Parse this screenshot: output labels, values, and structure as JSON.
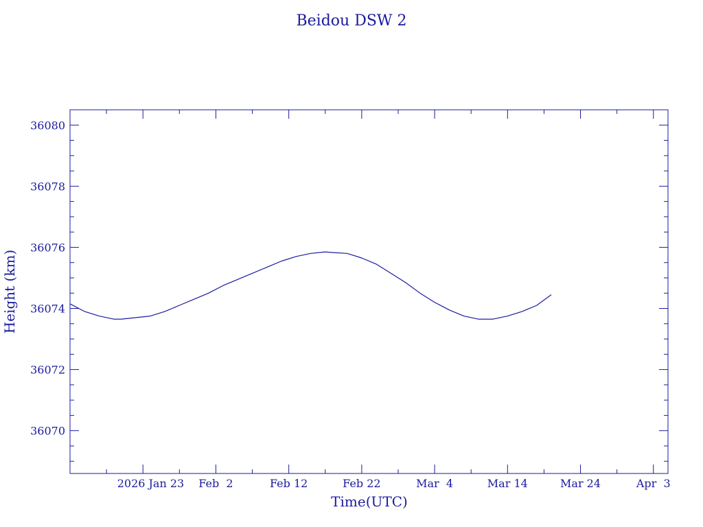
{
  "chart_data": {
    "type": "line",
    "title": "Beidou DSW 2",
    "xlabel": "Time(UTC)",
    "ylabel": "Height (km)",
    "xlim": [
      "2026-01-13",
      "2026-04-05"
    ],
    "ylim": [
      36068.6,
      36080.5
    ],
    "color": "#1a1a9e",
    "x_ticks": [
      {
        "date": "2026-01-23",
        "label": "2026 Jan 23"
      },
      {
        "date": "2026-02-02",
        "label": "Feb  2"
      },
      {
        "date": "2026-02-12",
        "label": "Feb 12"
      },
      {
        "date": "2026-02-22",
        "label": "Feb 22"
      },
      {
        "date": "2026-03-04",
        "label": "Mar  4"
      },
      {
        "date": "2026-03-14",
        "label": "Mar 14"
      },
      {
        "date": "2026-03-24",
        "label": "Mar 24"
      },
      {
        "date": "2026-04-03",
        "label": "Apr  3"
      }
    ],
    "y_ticks": [
      36070,
      36072,
      36074,
      36076,
      36078,
      36080
    ],
    "series": [
      {
        "x": [
          "2026-01-13",
          "2026-01-15",
          "2026-01-17",
          "2026-01-19",
          "2026-01-20",
          "2026-01-22",
          "2026-01-24",
          "2026-01-26",
          "2026-01-28",
          "2026-01-30",
          "2026-02-01",
          "2026-02-03",
          "2026-02-05",
          "2026-02-07",
          "2026-02-09",
          "2026-02-11",
          "2026-02-13",
          "2026-02-15",
          "2026-02-17",
          "2026-02-18",
          "2026-02-20",
          "2026-02-22",
          "2026-02-24",
          "2026-02-26",
          "2026-02-28",
          "2026-03-02",
          "2026-03-04",
          "2026-03-06",
          "2026-03-08",
          "2026-03-10",
          "2026-03-12",
          "2026-03-14",
          "2026-03-16",
          "2026-03-18",
          "2026-03-20"
        ],
        "y": [
          36074.15,
          36073.9,
          36073.75,
          36073.65,
          36073.65,
          36073.7,
          36073.75,
          36073.9,
          36074.1,
          36074.3,
          36074.5,
          36074.75,
          36074.95,
          36075.15,
          36075.35,
          36075.55,
          36075.7,
          36075.8,
          36075.85,
          36075.83,
          36075.8,
          36075.65,
          36075.45,
          36075.15,
          36074.85,
          36074.5,
          36074.2,
          36073.95,
          36073.75,
          36073.65,
          36073.65,
          36073.75,
          36073.9,
          36074.1,
          36074.45
        ]
      }
    ]
  }
}
